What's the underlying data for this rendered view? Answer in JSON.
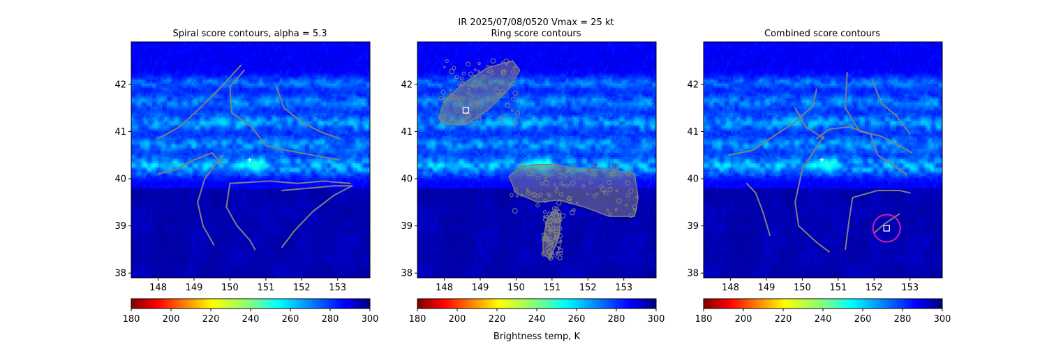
{
  "suptitle": "IR  2025/07/08/0520    Vmax = 25 kt",
  "colorbar_label": "Brightness temp, K",
  "colorbar": {
    "vmin": 180,
    "vmax": 300,
    "ticks": [
      "180",
      "200",
      "220",
      "240",
      "260",
      "280",
      "300"
    ],
    "colormap": "jet_reversed"
  },
  "chart_data": [
    {
      "type": "heatmap",
      "title": "Spiral score contours, alpha =  5.3",
      "x_ticks": [
        "148",
        "149",
        "150",
        "151",
        "152",
        "153"
      ],
      "y_ticks": [
        "38",
        "39",
        "40",
        "41",
        "42"
      ],
      "xlim": [
        147.25,
        153.9
      ],
      "ylim": [
        37.9,
        42.9
      ],
      "z_range_K": [
        180,
        300
      ],
      "contour_color": "#808080",
      "markers": [
        {
          "kind": "plus",
          "x": 150.55,
          "y": 40.4,
          "color": "#ffffff"
        }
      ],
      "contour_lines": [
        [
          [
            148.0,
            40.85
          ],
          [
            148.6,
            41.1
          ],
          [
            149.1,
            41.45
          ],
          [
            149.7,
            41.9
          ],
          [
            150.3,
            42.4
          ]
        ],
        [
          [
            148.0,
            40.1
          ],
          [
            148.5,
            40.2
          ],
          [
            149.0,
            40.4
          ],
          [
            149.5,
            40.55
          ],
          [
            149.8,
            40.3
          ]
        ],
        [
          [
            149.8,
            40.5
          ],
          [
            149.3,
            40.0
          ],
          [
            149.1,
            39.5
          ],
          [
            149.25,
            39.0
          ],
          [
            149.55,
            38.6
          ]
        ],
        [
          [
            150.4,
            42.3
          ],
          [
            150.0,
            41.95
          ],
          [
            150.05,
            41.4
          ],
          [
            150.6,
            41.1
          ],
          [
            151.0,
            40.7
          ],
          [
            151.6,
            40.6
          ],
          [
            152.3,
            40.5
          ],
          [
            153.05,
            40.4
          ]
        ],
        [
          [
            151.3,
            41.95
          ],
          [
            151.5,
            41.5
          ],
          [
            152.0,
            41.2
          ],
          [
            152.5,
            41.0
          ],
          [
            153.05,
            40.85
          ]
        ],
        [
          [
            151.45,
            39.75
          ],
          [
            152.2,
            39.8
          ],
          [
            152.9,
            39.85
          ],
          [
            153.4,
            39.85
          ]
        ],
        [
          [
            150.0,
            39.9
          ],
          [
            151.1,
            39.95
          ],
          [
            151.9,
            39.9
          ],
          [
            152.6,
            39.95
          ],
          [
            153.35,
            39.9
          ]
        ],
        [
          [
            150.0,
            39.9
          ],
          [
            149.9,
            39.4
          ],
          [
            150.2,
            39.0
          ],
          [
            150.55,
            38.7
          ],
          [
            150.7,
            38.5
          ]
        ],
        [
          [
            151.45,
            38.55
          ],
          [
            151.8,
            38.9
          ],
          [
            152.3,
            39.3
          ],
          [
            152.9,
            39.65
          ],
          [
            153.4,
            39.85
          ]
        ]
      ]
    },
    {
      "type": "heatmap",
      "title": "Ring score contours",
      "x_ticks": [
        "148",
        "149",
        "150",
        "151",
        "152",
        "153"
      ],
      "y_ticks": [
        "38",
        "39",
        "40",
        "41",
        "42"
      ],
      "xlim": [
        147.25,
        153.9
      ],
      "ylim": [
        37.9,
        42.9
      ],
      "z_range_K": [
        180,
        300
      ],
      "contour_color": "#808080",
      "markers": [
        {
          "kind": "square",
          "x": 148.6,
          "y": 41.45,
          "color": "#ffffff"
        }
      ],
      "contour_regions": [
        [
          [
            147.85,
            41.3
          ],
          [
            148.0,
            41.65
          ],
          [
            148.5,
            42.0
          ],
          [
            149.2,
            42.35
          ],
          [
            149.9,
            42.5
          ],
          [
            150.1,
            42.3
          ],
          [
            149.8,
            41.9
          ],
          [
            149.2,
            41.45
          ],
          [
            148.6,
            41.15
          ],
          [
            147.95,
            41.15
          ]
        ],
        [
          [
            149.8,
            40.05
          ],
          [
            150.1,
            40.25
          ],
          [
            150.5,
            40.3
          ],
          [
            151.1,
            40.3
          ],
          [
            151.8,
            40.2
          ],
          [
            152.6,
            40.2
          ],
          [
            153.3,
            40.1
          ],
          [
            153.4,
            39.6
          ],
          [
            153.3,
            39.2
          ],
          [
            152.6,
            39.2
          ],
          [
            151.9,
            39.4
          ],
          [
            151.2,
            39.55
          ],
          [
            150.6,
            39.5
          ],
          [
            150.0,
            39.7
          ]
        ],
        [
          [
            150.75,
            38.7
          ],
          [
            150.85,
            39.1
          ],
          [
            151.0,
            39.3
          ],
          [
            151.25,
            39.25
          ],
          [
            151.2,
            38.8
          ],
          [
            150.95,
            38.3
          ],
          [
            150.75,
            38.4
          ]
        ]
      ]
    },
    {
      "type": "heatmap",
      "title": "Combined score contours",
      "x_ticks": [
        "148",
        "149",
        "150",
        "151",
        "152",
        "153"
      ],
      "y_ticks": [
        "38",
        "39",
        "40",
        "41",
        "42"
      ],
      "xlim": [
        147.25,
        153.9
      ],
      "ylim": [
        37.9,
        42.9
      ],
      "z_range_K": [
        180,
        300
      ],
      "contour_color": "#808080",
      "ring_color": "#cc22aa",
      "markers": [
        {
          "kind": "plus",
          "x": 150.55,
          "y": 40.4,
          "color": "#ffffff"
        },
        {
          "kind": "square",
          "x": 152.35,
          "y": 38.95,
          "color": "#ffffff"
        }
      ],
      "ring": {
        "x": 152.35,
        "y": 38.95,
        "r_deg": 0.38
      },
      "contour_lines": [
        [
          [
            147.95,
            40.5
          ],
          [
            148.6,
            40.6
          ],
          [
            149.2,
            40.9
          ],
          [
            149.8,
            41.2
          ],
          [
            150.3,
            41.55
          ],
          [
            150.4,
            41.9
          ]
        ],
        [
          [
            148.45,
            39.9
          ],
          [
            148.7,
            39.7
          ],
          [
            148.9,
            39.3
          ],
          [
            149.1,
            38.8
          ]
        ],
        [
          [
            149.8,
            41.5
          ],
          [
            150.1,
            41.1
          ],
          [
            150.6,
            40.85
          ]
        ],
        [
          [
            150.6,
            40.9
          ],
          [
            150.0,
            40.2
          ],
          [
            149.8,
            39.5
          ],
          [
            149.9,
            39.0
          ],
          [
            150.4,
            38.65
          ],
          [
            150.75,
            38.45
          ]
        ],
        [
          [
            150.4,
            40.85
          ],
          [
            150.75,
            41.05
          ],
          [
            151.3,
            41.1
          ],
          [
            151.9,
            40.95
          ],
          [
            152.1,
            40.5
          ],
          [
            152.7,
            40.2
          ],
          [
            152.9,
            40.1
          ]
        ],
        [
          [
            151.25,
            42.25
          ],
          [
            151.2,
            41.5
          ],
          [
            151.6,
            41.0
          ],
          [
            152.2,
            40.9
          ],
          [
            152.7,
            40.7
          ],
          [
            153.05,
            40.55
          ]
        ],
        [
          [
            151.95,
            42.1
          ],
          [
            152.2,
            41.6
          ],
          [
            152.6,
            41.35
          ],
          [
            153.0,
            40.95
          ]
        ],
        [
          [
            151.2,
            38.5
          ],
          [
            151.3,
            39.1
          ],
          [
            151.4,
            39.6
          ],
          [
            152.1,
            39.75
          ],
          [
            152.7,
            39.75
          ],
          [
            153.0,
            39.7
          ]
        ],
        [
          [
            152.0,
            38.85
          ],
          [
            152.3,
            39.05
          ],
          [
            152.7,
            39.25
          ]
        ]
      ]
    }
  ]
}
